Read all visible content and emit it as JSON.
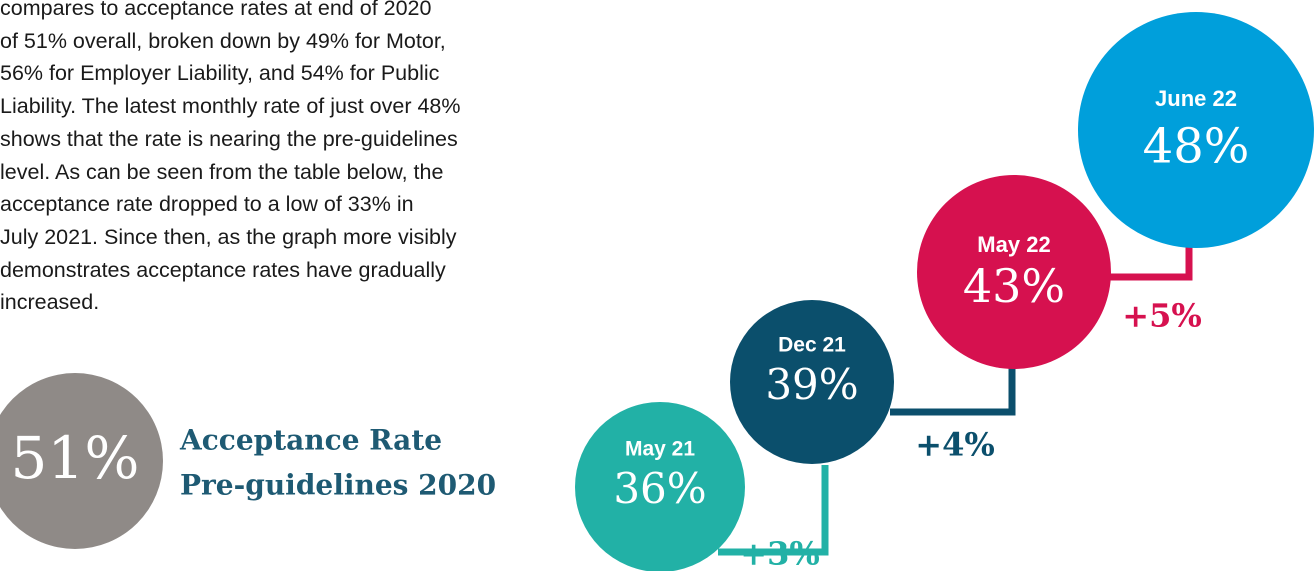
{
  "paragraph": [
    "compares to acceptance rates at end of 2020",
    "of 51% overall, broken down by 49% for Motor,",
    "56% for Employer Liability, and 54% for Public",
    "Liability. The latest monthly rate of just over 48%",
    "shows that the rate is nearing the pre-guidelines",
    "level. As can be seen from the table below, the",
    "acceptance rate dropped to a low of 33% in",
    "July 2021. Since then, as the graph more visibly",
    "demonstrates acceptance rates have gradually",
    "increased."
  ],
  "baseline": {
    "value": "51%",
    "label": [
      "Acceptance Rate",
      "Pre-guidelines 2020"
    ]
  },
  "bubbles": [
    {
      "period": "May 21",
      "rate": "36%",
      "color": "#22b1a6"
    },
    {
      "period": "Dec 21",
      "rate": "39%",
      "color": "#0b4f6c"
    },
    {
      "period": "May 22",
      "rate": "43%",
      "color": "#d6114f"
    },
    {
      "period": "June 22",
      "rate": "48%",
      "color": "#009fdb"
    }
  ],
  "increments": [
    "+3%",
    "+4%",
    "+5%"
  ]
}
